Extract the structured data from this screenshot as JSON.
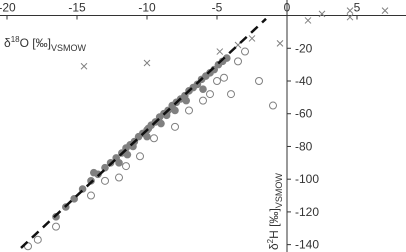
{
  "chart_data": {
    "type": "scatter",
    "x_label": {
      "prefix": "δ",
      "sup": "18",
      "main": "O [‰]",
      "sub": "VSMOW"
    },
    "y_label": {
      "prefix": "δ",
      "sup": "2",
      "main": "H [‰]",
      "sub": "VSMOW"
    },
    "xlim": [
      -20.5,
      8.5
    ],
    "ylim": [
      -144.5,
      9.5
    ],
    "xticks": [
      -20,
      -15,
      -10,
      -5,
      0,
      5
    ],
    "yticks": [
      -20,
      -40,
      -60,
      -80,
      -100,
      -120,
      -140
    ],
    "reference_line": {
      "color": "#111111",
      "x": [
        -19,
        -1.5
      ],
      "y": [
        -142,
        -2
      ]
    },
    "series": [
      {
        "marker": "filled",
        "color": "#808080",
        "x": [
          -16.5,
          -15.8,
          -15.2,
          -14.6,
          -14.0,
          -13.5,
          -13.0,
          -12.6,
          -12.2,
          -11.8,
          -11.5,
          -11.2,
          -10.9,
          -10.6,
          -10.3,
          -10.0,
          -9.7,
          -9.4,
          -9.1,
          -8.8,
          -8.5,
          -8.2,
          -7.9,
          -7.6,
          -7.3,
          -7.0,
          -6.7,
          -6.4,
          -6.1,
          -5.8,
          -5.5,
          -5.2,
          -4.9,
          -4.6,
          -4.3,
          -12.0,
          -11.0,
          -10.0,
          -9.0,
          -8.0,
          -13.8,
          -11.4,
          -9.9,
          -8.6,
          -7.2,
          -6.0
        ],
        "values": [
          -123,
          -117,
          -112,
          -106,
          -101,
          -97,
          -93,
          -90,
          -87,
          -84,
          -81,
          -79,
          -77,
          -74,
          -72,
          -70,
          -67,
          -65,
          -62,
          -60,
          -58,
          -55,
          -53,
          -51,
          -49,
          -46,
          -44,
          -42,
          -39,
          -37,
          -35,
          -33,
          -30,
          -28,
          -26,
          -90,
          -80,
          -74,
          -66,
          -58,
          -96,
          -85,
          -69,
          -61,
          -52,
          -45
        ]
      },
      {
        "marker": "open",
        "color": "#808080",
        "x": [
          -16.5,
          -17.8,
          -14,
          -12,
          -10.5,
          -9.5,
          -8,
          -7,
          -5.5,
          -4.5,
          -3.5,
          -3,
          -4,
          -2,
          -1,
          -5,
          -6,
          -13,
          -11.5,
          -18.5
        ],
        "values": [
          -129,
          -137,
          -110,
          -99,
          -86,
          -75,
          -68,
          -58,
          -48,
          -38,
          -28,
          -22,
          -48,
          -40,
          -55,
          -40,
          -52,
          -101,
          -92,
          -141
        ]
      },
      {
        "marker": "x",
        "color": "#808080",
        "x": [
          -14.5,
          -10,
          1.5,
          2.5,
          4.5,
          4.5,
          7,
          -0.5,
          -2.5,
          -3.5,
          -4.8
        ],
        "values": [
          -31,
          -29,
          -3,
          1,
          3,
          -1,
          3,
          -17,
          -14,
          -18,
          -22
        ]
      }
    ]
  }
}
